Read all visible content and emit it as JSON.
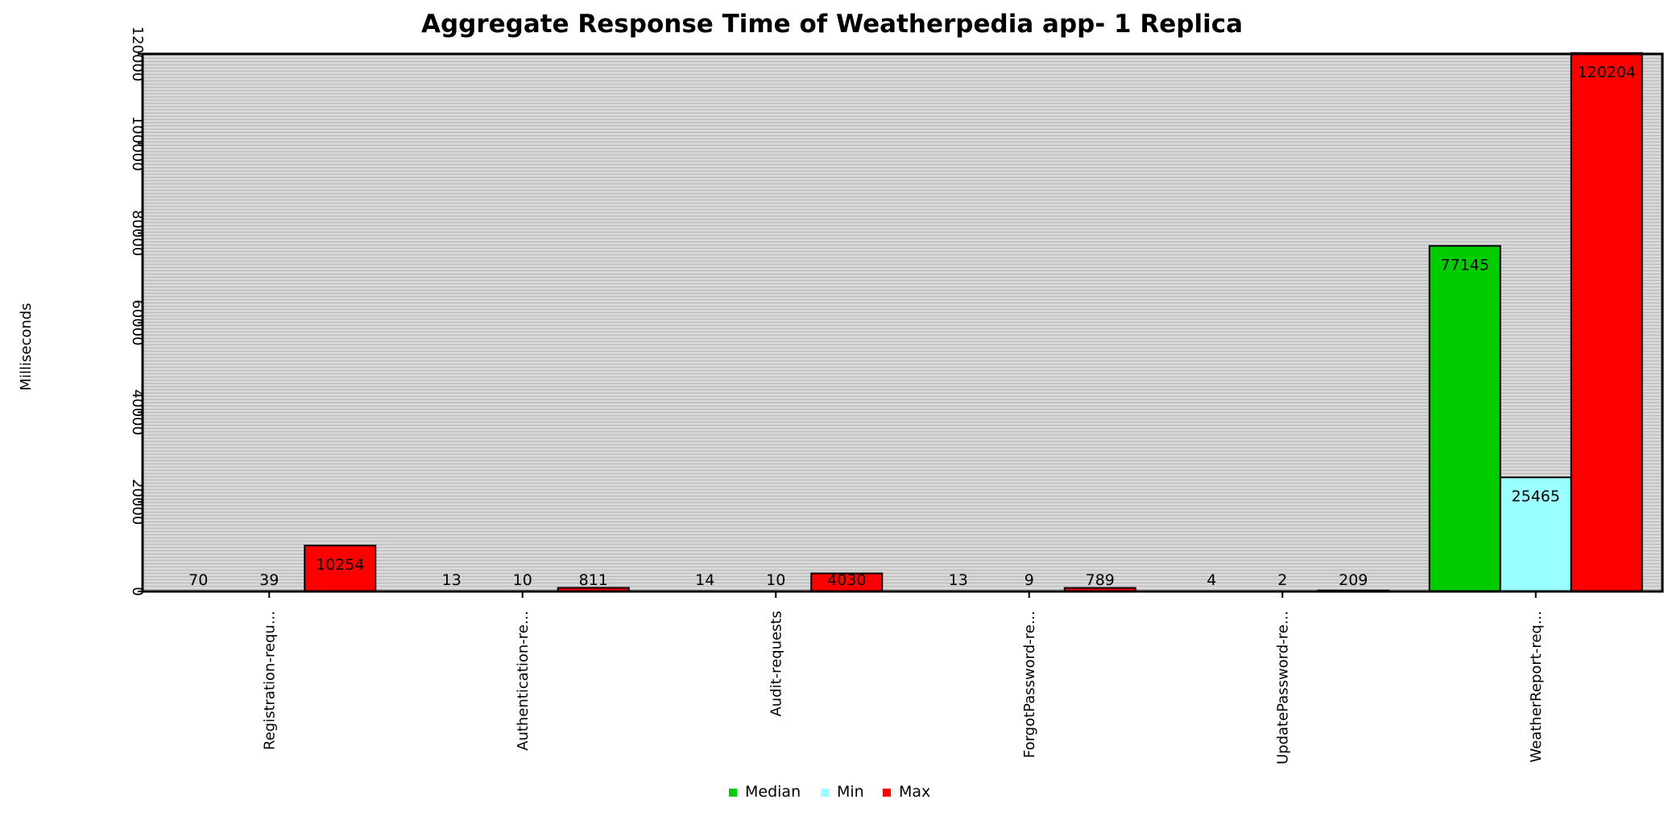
{
  "chart_data": {
    "type": "bar",
    "title": "Aggregate Response Time of Weatherpedia app- 1 Replica",
    "xlabel": "",
    "ylabel": "Milliseconds",
    "ylim": [
      0,
      120000
    ],
    "grid": true,
    "legend_position": "bottom",
    "categories": [
      "Registration-requ...",
      "Authentication-re...",
      "Audit-requests",
      "ForgotPassword-re...",
      "UpdatePassword-re...",
      "WeatherReport-req..."
    ],
    "series": [
      {
        "name": "Median",
        "color": "#00cc00",
        "values": [
          70,
          13,
          14,
          13,
          4,
          77145
        ]
      },
      {
        "name": "Min",
        "color": "#99ffff",
        "values": [
          39,
          10,
          10,
          9,
          2,
          25465
        ]
      },
      {
        "name": "Max",
        "color": "#ff0000",
        "values": [
          10254,
          811,
          4030,
          789,
          209,
          120204
        ]
      }
    ]
  }
}
